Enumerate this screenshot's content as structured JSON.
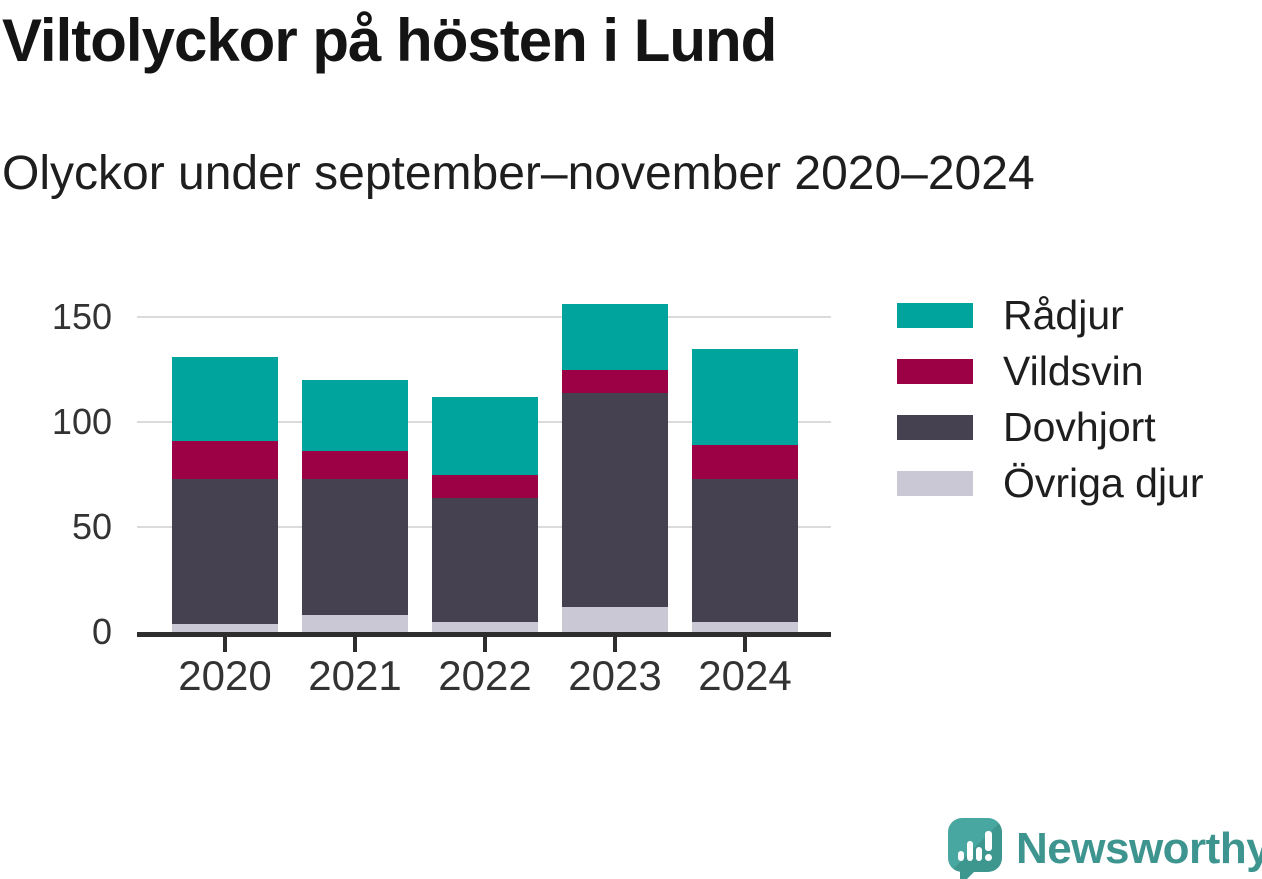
{
  "header": {
    "title": "Viltolyckor på hösten i Lund",
    "subtitle": "Olyckor under september–november 2020–2024"
  },
  "chart_data": {
    "type": "bar",
    "stacked": true,
    "title": "Viltolyckor på hösten i Lund",
    "subtitle": "Olyckor under september–november 2020–2024",
    "categories": [
      "2020",
      "2021",
      "2022",
      "2023",
      "2024"
    ],
    "series": [
      {
        "name": "Rådjur",
        "color": "#00a49c",
        "values": [
          40,
          34,
          37,
          31,
          46
        ]
      },
      {
        "name": "Vildsvin",
        "color": "#9c0045",
        "values": [
          18,
          13,
          11,
          11,
          16
        ]
      },
      {
        "name": "Dovhjort",
        "color": "#454150",
        "values": [
          69,
          65,
          59,
          102,
          68
        ]
      },
      {
        "name": "Övriga djur",
        "color": "#c9c8d4",
        "values": [
          4,
          8,
          5,
          12,
          5
        ]
      }
    ],
    "totals": [
      131,
      120,
      112,
      156,
      135
    ],
    "stack_order_bottom_to_top": [
      "Övriga djur",
      "Dovhjort",
      "Vildsvin",
      "Rådjur"
    ],
    "xlabel": "",
    "ylabel": "",
    "yticks": [
      0,
      50,
      100,
      150
    ],
    "ylim": [
      0,
      160
    ],
    "grid": true,
    "legend_position": "right"
  },
  "footer": {
    "brand": "Newsworthy",
    "logo_icon": "speech-bubble-bar-chart-icon"
  },
  "colors": {
    "background": "#ffffff",
    "title_text": "#141414",
    "axis_text": "#333333",
    "axis_line": "#2e2e2e",
    "gridline": "#dbdbdb",
    "brand_teal": "#3e958f"
  }
}
